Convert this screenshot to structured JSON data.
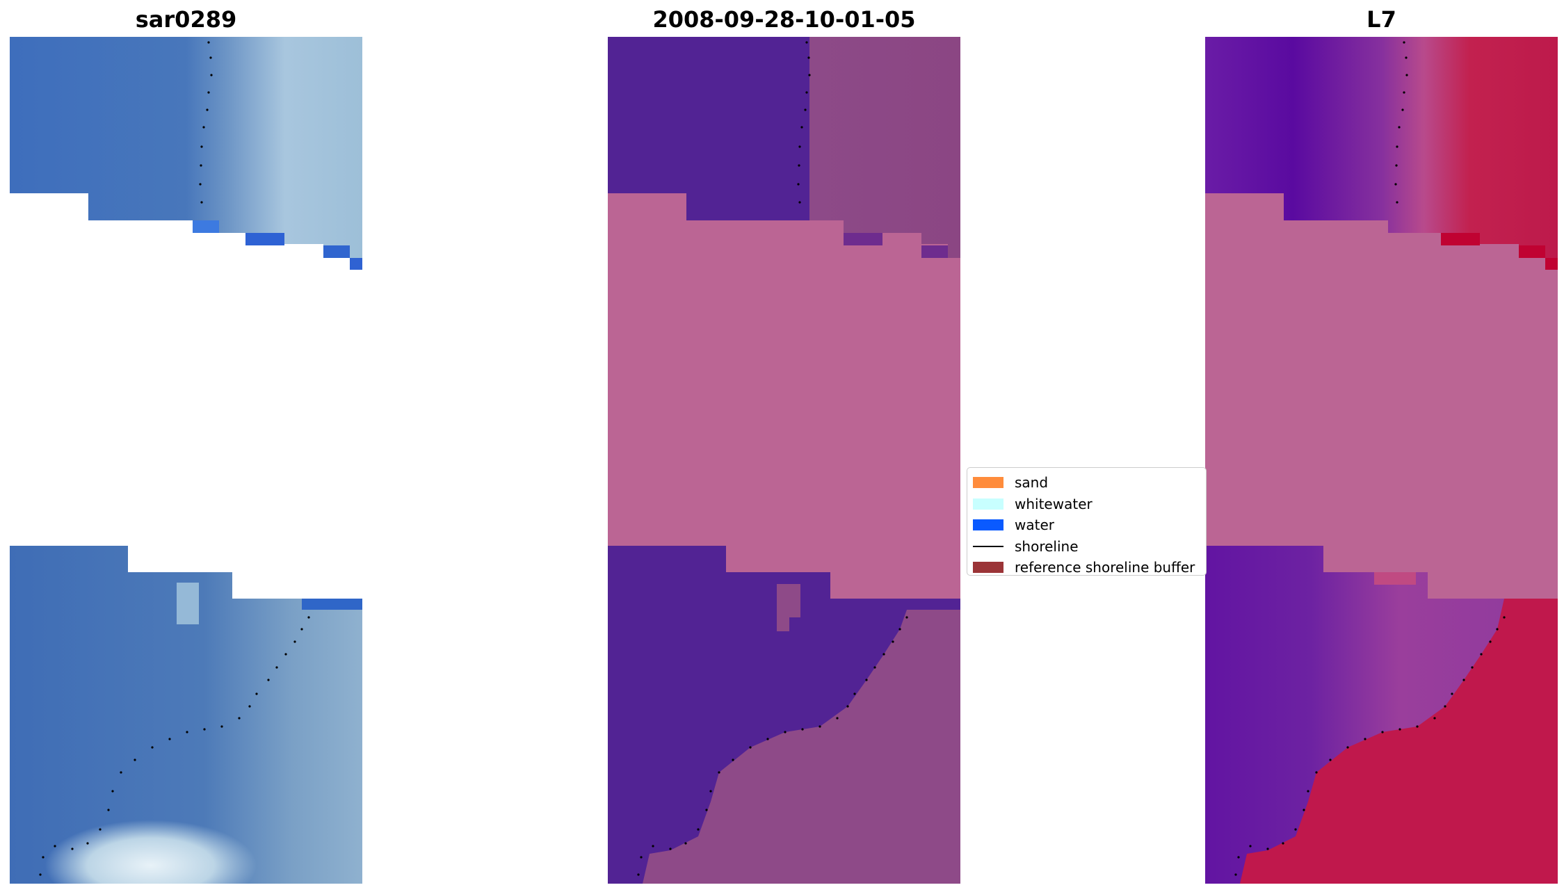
{
  "panels": [
    {
      "title": "sar0289"
    },
    {
      "title": "2008-09-28-10-01-05"
    },
    {
      "title": "L7"
    }
  ],
  "legend": {
    "items": [
      {
        "label": "sand",
        "color": "#ff8c3c"
      },
      {
        "label": "whitewater",
        "color": "#c8ffff"
      },
      {
        "label": "water",
        "color": "#0a5aff"
      },
      {
        "label": "shoreline",
        "color": "#000000"
      },
      {
        "label": "reference shoreline buffer",
        "color": "#9b3437"
      }
    ]
  },
  "colors": {
    "nodata_fill": "#bb6594",
    "water_class": "#522394",
    "land_class": "#8b4a85",
    "ndwi_water": "#5b0aa0",
    "ndwi_land": "#c0184c"
  }
}
